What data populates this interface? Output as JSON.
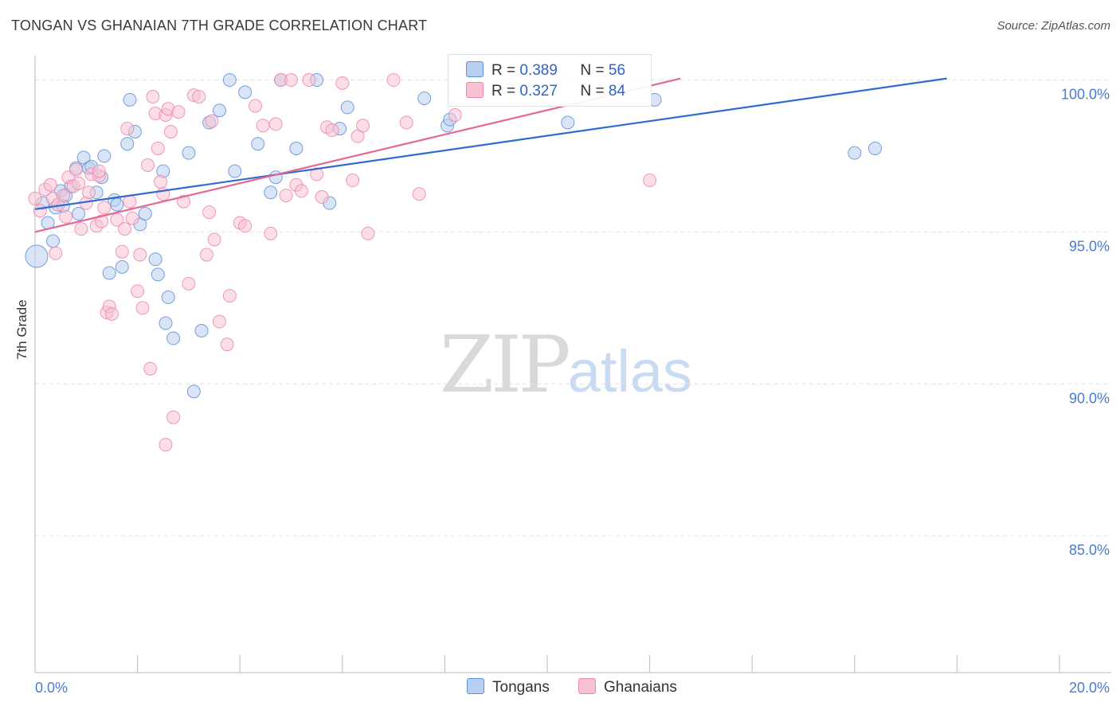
{
  "header": {
    "title": "TONGAN VS GHANAIAN 7TH GRADE CORRELATION CHART",
    "source": "Source: ZipAtlas.com"
  },
  "legend": {
    "rows": [
      {
        "r_label": "R =",
        "r_value": "0.389",
        "n_label": "N =",
        "n_value": "56"
      },
      {
        "r_label": "R =",
        "r_value": "0.327",
        "n_label": "N =",
        "n_value": "84"
      }
    ]
  },
  "bottom_legend": {
    "tongans": "Tongans",
    "ghanaians": "Ghanaians"
  },
  "watermark": {
    "zip": "ZIP",
    "atlas": "atlas"
  },
  "colors": {
    "tongans_fill": "#b9cff1",
    "tongans_stroke": "#5f8fdb",
    "tongans_line": "#2f6bd0",
    "ghanaians_fill": "#f7c3d4",
    "ghanaians_stroke": "#ec88a9",
    "ghanaians_line": "#e4688f",
    "tick_text": "#4a7bd0",
    "grid": "#e3e3e3"
  },
  "chart_data": {
    "type": "scatter",
    "title": "TONGAN VS GHANAIAN 7TH GRADE CORRELATION CHART",
    "xlabel": "",
    "ylabel": "7th Grade",
    "xlim": [
      0,
      20
    ],
    "ylim": [
      80.5,
      100.8
    ],
    "x_tick_labels": [
      {
        "value": 0,
        "label": "0.0%"
      },
      {
        "value": 20,
        "label": "20.0%"
      }
    ],
    "y_tick_labels": [
      {
        "value": 100,
        "label": "100.0%"
      },
      {
        "value": 95,
        "label": "95.0%"
      },
      {
        "value": 90,
        "label": "90.0%"
      },
      {
        "value": 85,
        "label": "85.0%"
      }
    ],
    "grid": true,
    "legend_position": "top-center",
    "series": [
      {
        "name": "Tongans",
        "R": 0.389,
        "N": 56,
        "trend": {
          "x": [
            0,
            17.8
          ],
          "y": [
            95.75,
            100.05
          ]
        },
        "points": [
          [
            0.03,
            94.2
          ],
          [
            0.25,
            95.3
          ],
          [
            0.35,
            94.7
          ],
          [
            0.4,
            95.8
          ],
          [
            0.5,
            96.35
          ],
          [
            0.6,
            96.2
          ],
          [
            0.7,
            96.5
          ],
          [
            0.8,
            97.1
          ],
          [
            0.85,
            95.6
          ],
          [
            0.95,
            97.45
          ],
          [
            1.05,
            97.1
          ],
          [
            1.1,
            97.15
          ],
          [
            1.2,
            96.3
          ],
          [
            1.3,
            96.8
          ],
          [
            1.35,
            97.5
          ],
          [
            1.45,
            93.65
          ],
          [
            1.55,
            96.05
          ],
          [
            1.6,
            95.9
          ],
          [
            1.7,
            93.85
          ],
          [
            1.8,
            97.9
          ],
          [
            1.85,
            99.35
          ],
          [
            1.95,
            98.3
          ],
          [
            2.05,
            95.25
          ],
          [
            2.15,
            95.6
          ],
          [
            2.35,
            94.1
          ],
          [
            2.4,
            93.6
          ],
          [
            2.5,
            97.0
          ],
          [
            2.55,
            92.0
          ],
          [
            2.6,
            92.85
          ],
          [
            2.7,
            91.5
          ],
          [
            3.0,
            97.6
          ],
          [
            3.1,
            89.75
          ],
          [
            3.25,
            91.75
          ],
          [
            3.4,
            98.6
          ],
          [
            3.6,
            99.0
          ],
          [
            3.8,
            100.0
          ],
          [
            3.9,
            97.0
          ],
          [
            4.1,
            99.6
          ],
          [
            4.35,
            97.9
          ],
          [
            4.6,
            96.3
          ],
          [
            4.7,
            96.8
          ],
          [
            4.8,
            100.0
          ],
          [
            5.1,
            97.75
          ],
          [
            5.5,
            100.0
          ],
          [
            5.75,
            95.95
          ],
          [
            5.95,
            98.4
          ],
          [
            6.1,
            99.1
          ],
          [
            7.6,
            99.4
          ],
          [
            8.05,
            98.5
          ],
          [
            8.1,
            98.7
          ],
          [
            10.4,
            98.6
          ],
          [
            12.1,
            99.35
          ],
          [
            16.0,
            97.6
          ],
          [
            16.4,
            97.75
          ],
          [
            0.15,
            95.95
          ],
          [
            0.55,
            95.85
          ]
        ]
      },
      {
        "name": "Ghanaians",
        "R": 0.327,
        "N": 84,
        "trend": {
          "x": [
            0,
            12.6
          ],
          "y": [
            95.0,
            100.05
          ]
        },
        "points": [
          [
            0.0,
            96.1
          ],
          [
            0.1,
            95.7
          ],
          [
            0.2,
            96.4
          ],
          [
            0.3,
            96.55
          ],
          [
            0.35,
            96.1
          ],
          [
            0.4,
            94.3
          ],
          [
            0.45,
            95.9
          ],
          [
            0.55,
            96.2
          ],
          [
            0.6,
            95.5
          ],
          [
            0.65,
            96.8
          ],
          [
            0.75,
            96.5
          ],
          [
            0.8,
            97.05
          ],
          [
            0.85,
            96.6
          ],
          [
            0.9,
            95.1
          ],
          [
            1.0,
            95.95
          ],
          [
            1.05,
            96.3
          ],
          [
            1.1,
            96.9
          ],
          [
            1.2,
            95.2
          ],
          [
            1.25,
            96.85
          ],
          [
            1.3,
            95.35
          ],
          [
            1.35,
            95.8
          ],
          [
            1.4,
            92.35
          ],
          [
            1.45,
            92.55
          ],
          [
            1.5,
            92.3
          ],
          [
            1.6,
            95.4
          ],
          [
            1.7,
            94.35
          ],
          [
            1.75,
            95.1
          ],
          [
            1.8,
            98.4
          ],
          [
            1.85,
            96.0
          ],
          [
            1.9,
            95.45
          ],
          [
            2.0,
            93.05
          ],
          [
            2.05,
            94.25
          ],
          [
            2.1,
            92.5
          ],
          [
            2.2,
            97.2
          ],
          [
            2.25,
            90.5
          ],
          [
            2.3,
            99.45
          ],
          [
            2.35,
            98.9
          ],
          [
            2.4,
            97.75
          ],
          [
            2.45,
            96.65
          ],
          [
            2.5,
            96.25
          ],
          [
            2.55,
            98.85
          ],
          [
            2.6,
            99.05
          ],
          [
            2.65,
            98.3
          ],
          [
            2.7,
            88.9
          ],
          [
            2.8,
            98.95
          ],
          [
            2.9,
            96.0
          ],
          [
            3.0,
            93.3
          ],
          [
            3.1,
            99.5
          ],
          [
            3.2,
            99.45
          ],
          [
            3.35,
            94.25
          ],
          [
            3.45,
            98.65
          ],
          [
            3.5,
            94.75
          ],
          [
            3.6,
            92.05
          ],
          [
            3.75,
            91.3
          ],
          [
            3.8,
            92.9
          ],
          [
            4.0,
            95.3
          ],
          [
            4.1,
            95.2
          ],
          [
            4.3,
            99.15
          ],
          [
            4.45,
            98.5
          ],
          [
            4.6,
            94.95
          ],
          [
            4.7,
            98.55
          ],
          [
            4.8,
            100.0
          ],
          [
            4.9,
            96.2
          ],
          [
            5.0,
            100.0
          ],
          [
            5.1,
            96.55
          ],
          [
            5.2,
            96.35
          ],
          [
            5.35,
            100.0
          ],
          [
            5.5,
            96.9
          ],
          [
            5.7,
            98.45
          ],
          [
            5.8,
            98.35
          ],
          [
            6.0,
            99.9
          ],
          [
            6.2,
            96.7
          ],
          [
            6.3,
            98.15
          ],
          [
            6.4,
            98.5
          ],
          [
            6.5,
            94.95
          ],
          [
            7.0,
            100.0
          ],
          [
            7.25,
            98.6
          ],
          [
            7.5,
            96.25
          ],
          [
            8.2,
            98.85
          ],
          [
            12.0,
            96.7
          ],
          [
            2.55,
            88.0
          ],
          [
            3.4,
            95.65
          ],
          [
            5.6,
            96.15
          ],
          [
            1.25,
            97.0
          ]
        ]
      }
    ]
  }
}
